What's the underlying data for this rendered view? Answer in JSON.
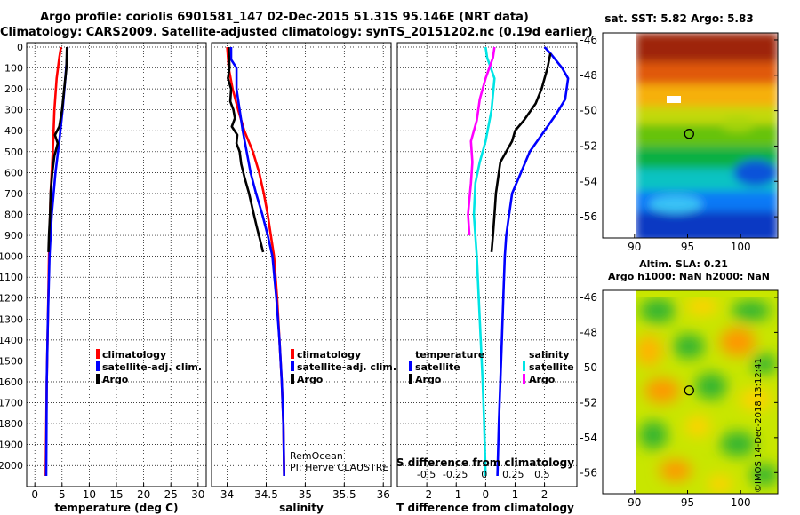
{
  "titles": {
    "line1": "Argo profile: coriolis 6901581_147 02-Dec-2015 51.31S 95.146E (NRT data)",
    "line2": "Climatology: CARS2009. Satellite-adjusted climatology: synTS_20151202.nc (0.19d earlier)"
  },
  "colors": {
    "climatology": "#ff0000",
    "satellite": "#0000ff",
    "argo": "#000000",
    "sat_salinity": "#00e5e5",
    "clim_salinity": "#ff00ff",
    "marker": "#000000"
  },
  "depth_axis": {
    "ticks": [
      0,
      100,
      200,
      300,
      400,
      500,
      600,
      700,
      800,
      900,
      1000,
      1100,
      1200,
      1300,
      1400,
      1500,
      1600,
      1700,
      1800,
      1900,
      2000
    ],
    "range": [
      0,
      2050
    ]
  },
  "chart_data": [
    {
      "type": "line",
      "id": "temperature",
      "xlabel": "temperature (deg C)",
      "ylabel": "depth",
      "xlim": [
        -1.5,
        31.5
      ],
      "xticks": [
        0,
        5,
        10,
        15,
        20,
        25,
        30
      ],
      "ylim": [
        0,
        2050
      ],
      "legend": [
        "climatology",
        "satellite-adj. clim.",
        "Argo"
      ],
      "series": [
        {
          "name": "climatology",
          "color": "climatology",
          "points": [
            [
              4.8,
              0
            ],
            [
              4.5,
              50
            ],
            [
              4.0,
              150
            ],
            [
              3.6,
              300
            ],
            [
              3.3,
              500
            ],
            [
              2.9,
              700
            ],
            [
              2.6,
              1000
            ],
            [
              2.4,
              1300
            ],
            [
              2.2,
              1600
            ],
            [
              2.0,
              2050
            ]
          ]
        },
        {
          "name": "satellite-adj. clim.",
          "color": "satellite",
          "points": [
            [
              6.0,
              0
            ],
            [
              5.9,
              50
            ],
            [
              5.6,
              150
            ],
            [
              5.1,
              300
            ],
            [
              4.5,
              450
            ],
            [
              3.8,
              600
            ],
            [
              3.1,
              800
            ],
            [
              2.7,
              1000
            ],
            [
              2.4,
              1300
            ],
            [
              2.2,
              1600
            ],
            [
              2.1,
              2050
            ]
          ]
        },
        {
          "name": "Argo",
          "color": "argo",
          "points": [
            [
              5.9,
              0
            ],
            [
              5.8,
              100
            ],
            [
              5.4,
              200
            ],
            [
              5.0,
              300
            ],
            [
              4.5,
              380
            ],
            [
              3.7,
              420
            ],
            [
              4.2,
              460
            ],
            [
              3.6,
              520
            ],
            [
              3.2,
              600
            ],
            [
              2.9,
              700
            ],
            [
              2.8,
              800
            ],
            [
              2.6,
              900
            ],
            [
              2.5,
              980
            ]
          ]
        }
      ]
    },
    {
      "type": "line",
      "id": "salinity",
      "xlabel": "salinity",
      "ylabel": "depth",
      "xlim": [
        33.8,
        36.1
      ],
      "xticks": [
        34,
        34.5,
        35,
        35.5,
        36
      ],
      "ylim": [
        0,
        2050
      ],
      "legend": [
        "climatology",
        "satellite-adj. clim.",
        "Argo"
      ],
      "annotation": [
        "RemOcean",
        "PI: Herve CLAUSTRE"
      ],
      "series": [
        {
          "name": "climatology",
          "color": "climatology",
          "points": [
            [
              34.0,
              0
            ],
            [
              34.02,
              100
            ],
            [
              34.07,
              200
            ],
            [
              34.14,
              300
            ],
            [
              34.22,
              400
            ],
            [
              34.33,
              500
            ],
            [
              34.41,
              600
            ],
            [
              34.47,
              700
            ],
            [
              34.52,
              800
            ],
            [
              34.56,
              900
            ],
            [
              34.6,
              1000
            ],
            [
              34.64,
              1200
            ],
            [
              34.67,
              1400
            ],
            [
              34.7,
              1600
            ],
            [
              34.72,
              1800
            ],
            [
              34.73,
              2050
            ]
          ]
        },
        {
          "name": "satellite-adj. clim.",
          "color": "satellite",
          "points": [
            [
              34.05,
              0
            ],
            [
              34.05,
              60
            ],
            [
              34.12,
              100
            ],
            [
              34.12,
              200
            ],
            [
              34.16,
              300
            ],
            [
              34.2,
              400
            ],
            [
              34.25,
              500
            ],
            [
              34.3,
              600
            ],
            [
              34.37,
              700
            ],
            [
              34.45,
              800
            ],
            [
              34.52,
              900
            ],
            [
              34.58,
              1000
            ],
            [
              34.63,
              1200
            ],
            [
              34.67,
              1400
            ],
            [
              34.7,
              1600
            ],
            [
              34.72,
              1800
            ],
            [
              34.73,
              2050
            ]
          ]
        },
        {
          "name": "Argo",
          "color": "argo",
          "points": [
            [
              34.02,
              0
            ],
            [
              34.03,
              100
            ],
            [
              34.01,
              150
            ],
            [
              34.05,
              200
            ],
            [
              34.04,
              260
            ],
            [
              34.08,
              300
            ],
            [
              34.1,
              340
            ],
            [
              34.06,
              380
            ],
            [
              34.13,
              420
            ],
            [
              34.12,
              460
            ],
            [
              34.16,
              500
            ],
            [
              34.18,
              560
            ],
            [
              34.22,
              620
            ],
            [
              34.28,
              700
            ],
            [
              34.33,
              780
            ],
            [
              34.38,
              860
            ],
            [
              34.42,
              920
            ],
            [
              34.46,
              980
            ]
          ]
        }
      ]
    },
    {
      "type": "line",
      "id": "difference",
      "xlabel": "T difference from climatology",
      "xlabel_top": "S difference from climatology",
      "ylabel": "depth",
      "xlim": [
        -3.0,
        3.1
      ],
      "xticks": [
        -2,
        -1,
        0,
        1,
        2
      ],
      "xticks_top": [
        -0.5,
        -0.25,
        0,
        0.25,
        0.5
      ],
      "xtick_labels_top": [
        "-0.5",
        "-0.25",
        "0",
        "0.25",
        "0.5"
      ],
      "ylim": [
        0,
        2050
      ],
      "legend_groups": [
        {
          "title": "temperature",
          "items": [
            "satellite",
            "Argo"
          ]
        },
        {
          "title": "salinity",
          "items": [
            "satellite",
            "Argo"
          ]
        }
      ],
      "series": [
        {
          "name": "T satellite",
          "color": "satellite",
          "points": [
            [
              2.0,
              0
            ],
            [
              2.2,
              30
            ],
            [
              2.6,
              100
            ],
            [
              2.8,
              150
            ],
            [
              2.7,
              250
            ],
            [
              2.4,
              320
            ],
            [
              2.0,
              400
            ],
            [
              1.5,
              500
            ],
            [
              1.2,
              600
            ],
            [
              0.9,
              700
            ],
            [
              0.8,
              800
            ],
            [
              0.7,
              900
            ],
            [
              0.65,
              1000
            ],
            [
              0.6,
              1200
            ],
            [
              0.55,
              1400
            ],
            [
              0.5,
              1600
            ],
            [
              0.45,
              1800
            ],
            [
              0.4,
              2050
            ]
          ]
        },
        {
          "name": "T Argo",
          "color": "argo",
          "points": [
            [
              2.2,
              30
            ],
            [
              2.1,
              100
            ],
            [
              2.0,
              150
            ],
            [
              1.9,
              200
            ],
            [
              1.7,
              270
            ],
            [
              1.3,
              350
            ],
            [
              1.0,
              400
            ],
            [
              0.9,
              450
            ],
            [
              0.7,
              500
            ],
            [
              0.5,
              550
            ],
            [
              0.45,
              600
            ],
            [
              0.35,
              700
            ],
            [
              0.3,
              800
            ],
            [
              0.25,
              900
            ],
            [
              0.2,
              980
            ]
          ]
        },
        {
          "name": "S satellite",
          "color": "sat_salinity",
          "points": [
            [
              0.0,
              0
            ],
            [
              0.05,
              50
            ],
            [
              0.3,
              150
            ],
            [
              0.2,
              300
            ],
            [
              0.0,
              450
            ],
            [
              -0.2,
              550
            ],
            [
              -0.35,
              650
            ],
            [
              -0.4,
              800
            ],
            [
              -0.3,
              1000
            ],
            [
              -0.2,
              1300
            ],
            [
              -0.1,
              1600
            ],
            [
              -0.05,
              1800
            ],
            [
              0.0,
              2050
            ]
          ]
        },
        {
          "name": "S Argo",
          "color": "clim_salinity",
          "points": [
            [
              0.3,
              0
            ],
            [
              0.25,
              50
            ],
            [
              0.0,
              150
            ],
            [
              -0.2,
              250
            ],
            [
              -0.3,
              350
            ],
            [
              -0.5,
              450
            ],
            [
              -0.45,
              550
            ],
            [
              -0.5,
              650
            ],
            [
              -0.6,
              800
            ],
            [
              -0.55,
              900
            ]
          ]
        }
      ]
    },
    {
      "type": "heatmap",
      "id": "sst_map",
      "title": "sat. SST: 5.82 Argo: 5.83",
      "x_ticks": [
        90,
        95,
        100
      ],
      "y_ticks": [
        -46,
        -48,
        -50,
        -52,
        -54,
        -56
      ],
      "xlim": [
        87,
        103.5
      ],
      "ylim": [
        -57.2,
        -45.6
      ],
      "marker": [
        95.15,
        -51.31
      ]
    },
    {
      "type": "heatmap",
      "id": "sla_map",
      "title_line1": "Altim. SLA: 0.21",
      "title_line2": "Argo h1000: NaN h2000: NaN",
      "x_ticks": [
        90,
        95,
        100
      ],
      "y_ticks": [
        -46,
        -48,
        -50,
        -52,
        -54,
        -56
      ],
      "xlim": [
        87,
        103.5
      ],
      "ylim": [
        -57.2,
        -45.6
      ],
      "marker": [
        95.15,
        -51.31
      ]
    }
  ],
  "footer": "©IMOS 14-Dec-2018 13:12:41"
}
